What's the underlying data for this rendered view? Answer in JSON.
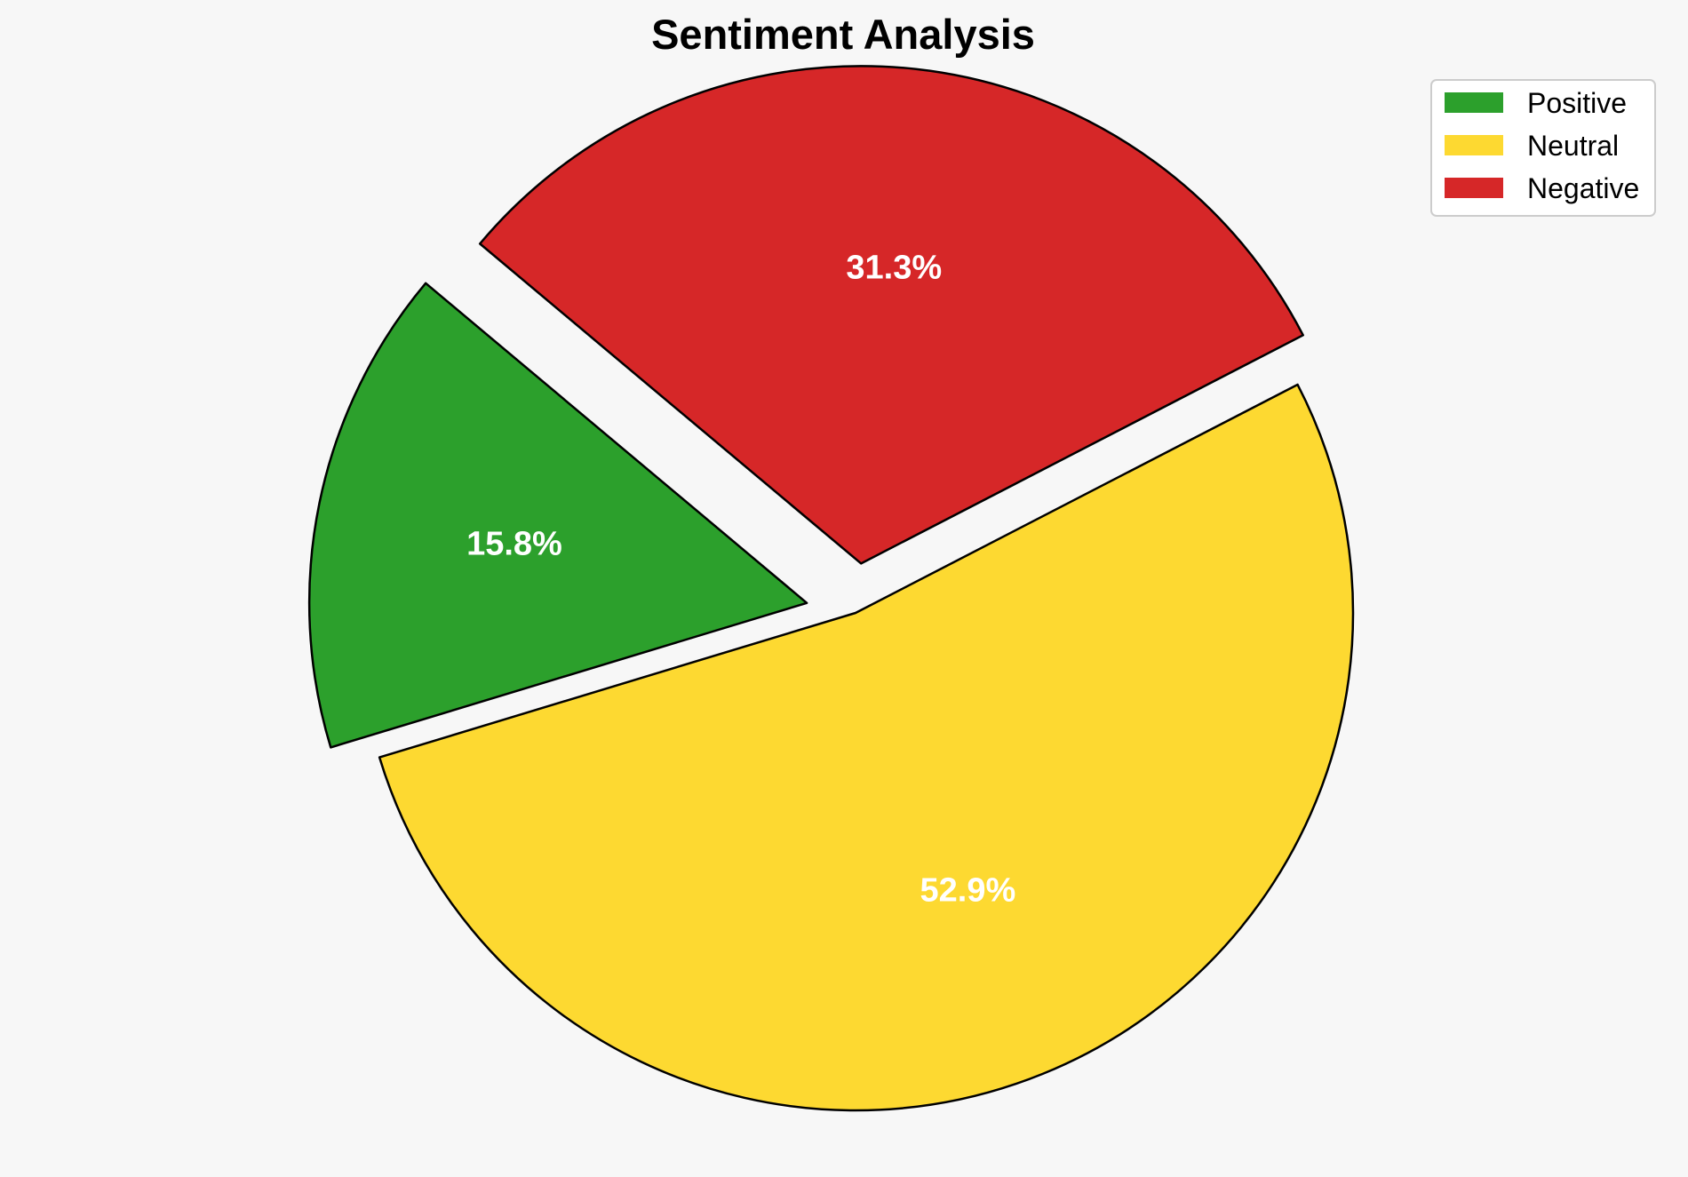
{
  "chart_data": {
    "type": "pie",
    "title": "Sentiment Analysis",
    "slices": [
      {
        "label": "Positive",
        "value": 15.8,
        "pct_label": "15.8%",
        "color": "#2ca02c",
        "exploded": true
      },
      {
        "label": "Neutral",
        "value": 52.9,
        "pct_label": "52.9%",
        "color": "#fdd931",
        "exploded": false
      },
      {
        "label": "Negative",
        "value": 31.3,
        "pct_label": "31.3%",
        "color": "#d62728",
        "exploded": true
      }
    ],
    "legend_placement": "top-right",
    "edge_color": "#000000",
    "label_color": "#ffffff"
  }
}
